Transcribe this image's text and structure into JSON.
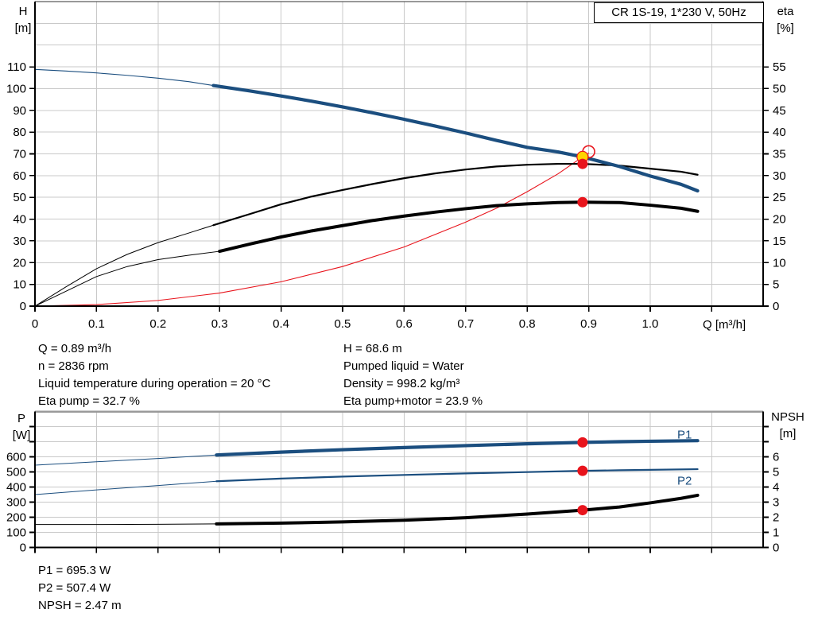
{
  "title_box": "CR 1S-19, 1*230 V, 50Hz",
  "colors": {
    "curve_blue": "#1b4e7f",
    "curve_black": "#000000",
    "curve_red": "#e8141c",
    "duty_yellow": "#ffd400",
    "duty_red": "#e8141c",
    "gridline": "#c9c9c9",
    "axis": "#000000"
  },
  "operating_point_info": {
    "left": [
      "Q = 0.89 m³/h",
      "n = 2836 rpm",
      "Liquid temperature during operation = 20 °C",
      "Eta pump = 32.7 %"
    ],
    "right": [
      "H = 68.6 m",
      "Pumped liquid = Water",
      "Density = 998.2 kg/m³",
      "Eta pump+motor = 23.9 %"
    ]
  },
  "power_info": [
    "P1 = 695.3 W",
    "P2 = 507.4 W",
    "NPSH = 2.47 m"
  ],
  "chart_data": [
    {
      "id": "head",
      "type": "line",
      "title": "CR 1S-19, 1*230 V, 50Hz",
      "x_axis": {
        "label": "Q [m³/h]",
        "min": 0,
        "max": 1.1835,
        "grid_step": 0.1,
        "show_tick_labels": true,
        "labeled_ticks": [
          [
            0,
            "0"
          ],
          [
            0.1,
            "0.1"
          ],
          [
            0.2,
            "0.2"
          ],
          [
            0.3,
            "0.3"
          ],
          [
            0.4,
            "0.4"
          ],
          [
            0.5,
            "0.5"
          ],
          [
            0.6,
            "0.6"
          ],
          [
            0.7,
            "0.7"
          ],
          [
            0.8,
            "0.8"
          ],
          [
            0.9,
            "0.9"
          ],
          [
            1.0,
            "1.0"
          ]
        ],
        "extra_ticks": [
          1.1
        ]
      },
      "y_left": {
        "name": "H",
        "unit": "[m]",
        "min": 0,
        "max": 140,
        "grid_step": 10,
        "labeled_ticks": [
          [
            0,
            "0"
          ],
          [
            10,
            "10"
          ],
          [
            20,
            "20"
          ],
          [
            30,
            "30"
          ],
          [
            40,
            "40"
          ],
          [
            50,
            "50"
          ],
          [
            60,
            "60"
          ],
          [
            70,
            "70"
          ],
          [
            80,
            "80"
          ],
          [
            90,
            "90"
          ],
          [
            100,
            "100"
          ],
          [
            110,
            "110"
          ]
        ],
        "extra_ticks": []
      },
      "y_right": {
        "name": "eta",
        "unit": "[%]",
        "min": 0,
        "max": 70,
        "labeled_ticks": [
          [
            0,
            "0"
          ],
          [
            5,
            "5"
          ],
          [
            10,
            "10"
          ],
          [
            15,
            "15"
          ],
          [
            20,
            "20"
          ],
          [
            25,
            "25"
          ],
          [
            30,
            "30"
          ],
          [
            35,
            "35"
          ],
          [
            40,
            "40"
          ],
          [
            45,
            "45"
          ],
          [
            50,
            "50"
          ],
          [
            55,
            "55"
          ]
        ],
        "extra_ticks": []
      },
      "series": [
        {
          "name": "system-resistance-curve",
          "axis": "left",
          "color": "curve_red",
          "width_thin": 1.1,
          "width_thick": 1.1,
          "thick_from": null,
          "points": [
            [
              0,
              0
            ],
            [
              0.1,
              0.7
            ],
            [
              0.2,
              2.6
            ],
            [
              0.3,
              6.0
            ],
            [
              0.4,
              11.2
            ],
            [
              0.5,
              18.2
            ],
            [
              0.6,
              27.2
            ],
            [
              0.7,
              38.6
            ],
            [
              0.75,
              45.0
            ],
            [
              0.8,
              52.6
            ],
            [
              0.85,
              60.8
            ],
            [
              0.89,
              68.6
            ],
            [
              0.9,
              70.4
            ]
          ]
        },
        {
          "name": "eta-pump-curve",
          "axis": "right",
          "color": "curve_black",
          "width_thin": 1.0,
          "width_thick": 2.2,
          "thick_from": 0.29,
          "points": [
            [
              0,
              0
            ],
            [
              0.05,
              4.4
            ],
            [
              0.1,
              8.6
            ],
            [
              0.15,
              11.9
            ],
            [
              0.2,
              14.6
            ],
            [
              0.25,
              16.8
            ],
            [
              0.29,
              18.6
            ],
            [
              0.35,
              21.2
            ],
            [
              0.4,
              23.4
            ],
            [
              0.45,
              25.2
            ],
            [
              0.5,
              26.7
            ],
            [
              0.55,
              28.1
            ],
            [
              0.6,
              29.4
            ],
            [
              0.65,
              30.5
            ],
            [
              0.7,
              31.4
            ],
            [
              0.75,
              32.1
            ],
            [
              0.8,
              32.5
            ],
            [
              0.85,
              32.7
            ],
            [
              0.89,
              32.7
            ],
            [
              0.95,
              32.3
            ],
            [
              1.0,
              31.6
            ],
            [
              1.05,
              30.9
            ],
            [
              1.077,
              30.2
            ]
          ]
        },
        {
          "name": "eta-pump-motor-curve",
          "axis": "right",
          "color": "curve_black",
          "width_thin": 1.0,
          "width_thick": 4.0,
          "thick_from": 0.3,
          "points": [
            [
              0,
              0
            ],
            [
              0.05,
              3.4
            ],
            [
              0.1,
              6.8
            ],
            [
              0.15,
              9.1
            ],
            [
              0.2,
              10.7
            ],
            [
              0.25,
              11.7
            ],
            [
              0.3,
              12.6
            ],
            [
              0.35,
              14.3
            ],
            [
              0.4,
              15.9
            ],
            [
              0.45,
              17.3
            ],
            [
              0.5,
              18.5
            ],
            [
              0.55,
              19.7
            ],
            [
              0.6,
              20.7
            ],
            [
              0.65,
              21.6
            ],
            [
              0.7,
              22.4
            ],
            [
              0.75,
              23.1
            ],
            [
              0.8,
              23.5
            ],
            [
              0.85,
              23.8
            ],
            [
              0.89,
              23.9
            ],
            [
              0.95,
              23.8
            ],
            [
              1.0,
              23.2
            ],
            [
              1.05,
              22.5
            ],
            [
              1.077,
              21.8
            ]
          ]
        },
        {
          "name": "head-curve",
          "axis": "left",
          "color": "curve_blue",
          "width_thin": 1.1,
          "width_thick": 4.2,
          "thick_from": 0.29,
          "points": [
            [
              0,
              108.8
            ],
            [
              0.05,
              108.1
            ],
            [
              0.1,
              107.2
            ],
            [
              0.15,
              106.1
            ],
            [
              0.2,
              104.8
            ],
            [
              0.25,
              103.2
            ],
            [
              0.29,
              101.4
            ],
            [
              0.35,
              98.9
            ],
            [
              0.4,
              96.6
            ],
            [
              0.45,
              94.2
            ],
            [
              0.5,
              91.6
            ],
            [
              0.55,
              88.8
            ],
            [
              0.6,
              85.9
            ],
            [
              0.65,
              82.8
            ],
            [
              0.7,
              79.6
            ],
            [
              0.75,
              76.2
            ],
            [
              0.8,
              73.0
            ],
            [
              0.85,
              70.9
            ],
            [
              0.89,
              68.6
            ],
            [
              0.95,
              64.2
            ],
            [
              1.0,
              59.8
            ],
            [
              1.05,
              56.0
            ],
            [
              1.077,
              53.0
            ]
          ]
        }
      ],
      "markers": [
        {
          "name": "requested-duty-point-marker",
          "shape": "open-circle",
          "q": 0.9,
          "value": 71.0,
          "axis": "left",
          "stroke": "duty_red",
          "r": 7.5
        },
        {
          "name": "duty-point-head-marker",
          "shape": "dot",
          "q": 0.89,
          "value": 68.6,
          "axis": "left",
          "fill": "duty_yellow",
          "stroke": "duty_red",
          "r": 7
        },
        {
          "name": "duty-point-eta-pump-marker",
          "shape": "dot",
          "q": 0.89,
          "value": 32.7,
          "axis": "right",
          "fill": "duty_red",
          "stroke": "none",
          "r": 6.5
        },
        {
          "name": "duty-point-eta-pump-motor-marker",
          "shape": "dot",
          "q": 0.89,
          "value": 23.9,
          "axis": "right",
          "fill": "duty_red",
          "stroke": "none",
          "r": 6.5
        }
      ],
      "curve_labels": []
    },
    {
      "id": "power",
      "type": "line",
      "x_axis": {
        "label": "",
        "min": 0,
        "max": 1.1835,
        "grid_step": 0.1,
        "show_tick_labels": false,
        "labeled_ticks": [],
        "extra_ticks": [
          0,
          0.1,
          0.2,
          0.3,
          0.4,
          0.5,
          0.6,
          0.7,
          0.8,
          0.9,
          1.0,
          1.1
        ]
      },
      "y_left": {
        "name": "P",
        "unit": "[W]",
        "min": 0,
        "max": 900,
        "grid_step": 100,
        "labeled_ticks": [
          [
            0,
            "0"
          ],
          [
            100,
            "100"
          ],
          [
            200,
            "200"
          ],
          [
            300,
            "300"
          ],
          [
            400,
            "400"
          ],
          [
            500,
            "500"
          ],
          [
            600,
            "600"
          ]
        ],
        "extra_ticks": [
          700,
          800
        ]
      },
      "y_right": {
        "name": "NPSH",
        "unit": "[m]",
        "min": 0,
        "max": 9,
        "labeled_ticks": [
          [
            0,
            "0"
          ],
          [
            1,
            "1"
          ],
          [
            2,
            "2"
          ],
          [
            3,
            "3"
          ],
          [
            4,
            "4"
          ],
          [
            5,
            "5"
          ],
          [
            6,
            "6"
          ]
        ],
        "extra_ticks": [
          7,
          8
        ]
      },
      "series": [
        {
          "name": "p1-curve",
          "axis": "left",
          "color": "curve_blue",
          "width_thin": 1.0,
          "width_thick": 4.2,
          "thick_from": 0.295,
          "points": [
            [
              0,
              545
            ],
            [
              0.1,
              567
            ],
            [
              0.2,
              589
            ],
            [
              0.295,
              612
            ],
            [
              0.4,
              631
            ],
            [
              0.5,
              647
            ],
            [
              0.6,
              661
            ],
            [
              0.7,
              674
            ],
            [
              0.8,
              686
            ],
            [
              0.89,
              695.3
            ],
            [
              0.95,
              700
            ],
            [
              1.0,
              703
            ],
            [
              1.077,
              707
            ]
          ]
        },
        {
          "name": "p2-curve",
          "axis": "left",
          "color": "curve_blue",
          "width_thin": 1.0,
          "width_thick": 2.2,
          "thick_from": 0.295,
          "points": [
            [
              0,
              350
            ],
            [
              0.1,
              381
            ],
            [
              0.2,
              410
            ],
            [
              0.295,
              438
            ],
            [
              0.4,
              456
            ],
            [
              0.5,
              469
            ],
            [
              0.6,
              480
            ],
            [
              0.7,
              490
            ],
            [
              0.8,
              499
            ],
            [
              0.89,
              507.4
            ],
            [
              0.95,
              511
            ],
            [
              1.0,
              514
            ],
            [
              1.077,
              518
            ]
          ]
        },
        {
          "name": "npsh-curve",
          "axis": "right",
          "color": "curve_black",
          "width_thin": 1.0,
          "width_thick": 4.0,
          "thick_from": 0.295,
          "points": [
            [
              0,
              1.52
            ],
            [
              0.1,
              1.52
            ],
            [
              0.2,
              1.53
            ],
            [
              0.295,
              1.56
            ],
            [
              0.4,
              1.61
            ],
            [
              0.5,
              1.69
            ],
            [
              0.6,
              1.8
            ],
            [
              0.7,
              1.97
            ],
            [
              0.8,
              2.21
            ],
            [
              0.89,
              2.47
            ],
            [
              0.95,
              2.68
            ],
            [
              1.0,
              2.95
            ],
            [
              1.05,
              3.25
            ],
            [
              1.077,
              3.45
            ]
          ]
        }
      ],
      "markers": [
        {
          "name": "duty-point-p1-marker",
          "shape": "dot",
          "q": 0.89,
          "value": 695.3,
          "axis": "left",
          "fill": "duty_red",
          "stroke": "none",
          "r": 6.5
        },
        {
          "name": "duty-point-p2-marker",
          "shape": "dot",
          "q": 0.89,
          "value": 507.4,
          "axis": "left",
          "fill": "duty_red",
          "stroke": "none",
          "r": 6.5
        },
        {
          "name": "duty-point-npsh-marker",
          "shape": "dot",
          "q": 0.89,
          "value": 2.47,
          "axis": "right",
          "fill": "duty_red",
          "stroke": "none",
          "r": 6.5
        }
      ],
      "curve_labels": [
        {
          "text": "P1",
          "q": 1.044,
          "value": 748,
          "axis": "left",
          "color": "curve_blue",
          "name": "p1-curve-label"
        },
        {
          "text": "P2",
          "q": 1.044,
          "value": 442,
          "axis": "left",
          "color": "curve_blue",
          "name": "p2-curve-label"
        }
      ]
    }
  ]
}
